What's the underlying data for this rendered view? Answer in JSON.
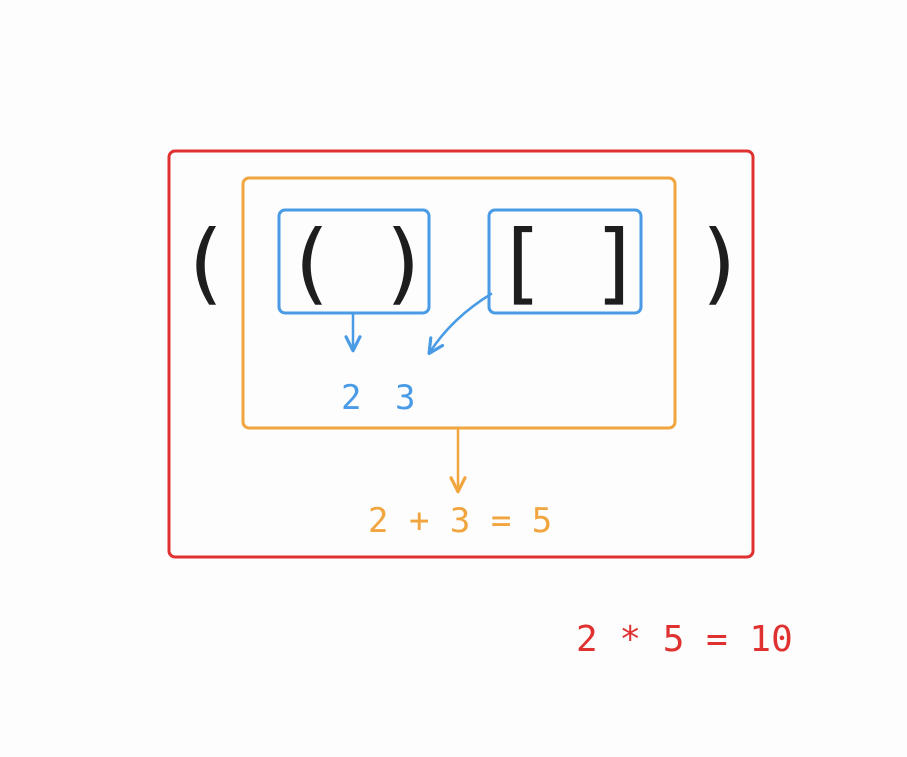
{
  "colors": {
    "outer": "#e03131",
    "middle": "#f0a53e",
    "inner": "#4a9be6",
    "ink": "#1e1e1e",
    "background": "#fdfdfd"
  },
  "glyphs": {
    "outer_open": "(",
    "outer_close": ")",
    "inner1_open": "(",
    "inner1_close": ")",
    "inner2_open": "[",
    "inner2_close": "]"
  },
  "labels": {
    "inner_scores_a": "2",
    "inner_scores_b": "3",
    "middle_result": "2 + 3 = 5",
    "outer_result": "2 * 5 = 10"
  }
}
